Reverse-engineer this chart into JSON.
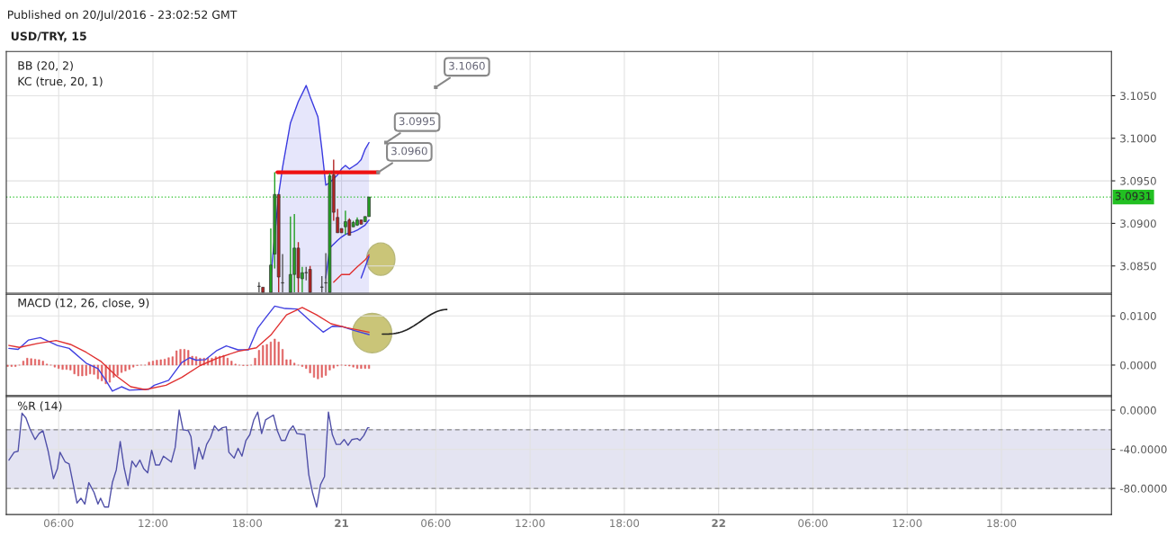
{
  "chart_data": [
    {
      "type": "candlestick",
      "title": "USD/TRY, 15",
      "subtitle": "Published on 20/Jul/2016 - 23:02:52 GMT",
      "annotations": [
        "BB (20, 2)",
        "KC (true, 20, 1)",
        {
          "text": "3.0960",
          "x": "2016-07-21T02:20",
          "y": 3.096
        },
        {
          "text": "3.0995",
          "x": "2016-07-21T02:50",
          "y": 3.0995
        },
        {
          "text": "3.1060",
          "x": "2016-07-21T06:00",
          "y": 3.106
        }
      ],
      "x": [
        "2016-07-20T18:45",
        "2016-07-20T19:00",
        "2016-07-20T19:30",
        "2016-07-20T19:45",
        "2016-07-20T20:00",
        "2016-07-20T20:15",
        "2016-07-20T20:45",
        "2016-07-20T21:00",
        "2016-07-20T21:15",
        "2016-07-20T21:30",
        "2016-07-20T21:45",
        "2016-07-20T22:00",
        "2016-07-20T22:45",
        "2016-07-20T23:00",
        "2016-07-20T23:15",
        "2016-07-20T23:30",
        "2016-07-20T23:45",
        "2016-07-21T00:00",
        "2016-07-21T00:15",
        "2016-07-21T00:30",
        "2016-07-21T00:45",
        "2016-07-21T01:00",
        "2016-07-21T01:15",
        "2016-07-21T01:30",
        "2016-07-21T01:45"
      ],
      "ohlc": [
        [
          3.0826,
          3.0831,
          3.0819,
          3.0826
        ],
        [
          3.0825,
          3.0825,
          3.0819,
          3.0819
        ],
        [
          3.0819,
          3.0894,
          3.0819,
          3.0851
        ],
        [
          3.0864,
          3.096,
          3.0847,
          3.0934
        ],
        [
          3.0934,
          3.0934,
          3.0819,
          3.0837
        ],
        [
          3.083,
          3.0864,
          3.0819,
          3.083
        ],
        [
          3.0819,
          3.0908,
          3.0819,
          3.084
        ],
        [
          3.084,
          3.0911,
          3.0819,
          3.0871
        ],
        [
          3.0871,
          3.0878,
          3.0819,
          3.0836
        ],
        [
          3.0835,
          3.0849,
          3.0819,
          3.0842
        ],
        [
          3.0842,
          3.0849,
          3.0833,
          3.0842
        ],
        [
          3.0846,
          3.085,
          3.0819,
          3.0819
        ],
        [
          3.0825,
          3.0838,
          3.0819,
          3.0825
        ],
        [
          3.083,
          3.0865,
          3.0819,
          3.083
        ],
        [
          3.0819,
          3.0959,
          3.0819,
          3.0956
        ],
        [
          3.0957,
          3.0975,
          3.0903,
          3.0913
        ],
        [
          3.0907,
          3.0917,
          3.0889,
          3.0889
        ],
        [
          3.0894,
          3.0894,
          3.0889,
          3.0889
        ],
        [
          3.0896,
          3.0915,
          3.0887,
          3.0902
        ],
        [
          3.0904,
          3.0906,
          3.0886,
          3.0886
        ],
        [
          3.0896,
          3.0903,
          3.0896,
          3.0901
        ],
        [
          3.0898,
          3.0907,
          3.0897,
          3.0904
        ],
        [
          3.0904,
          3.0904,
          3.0899,
          3.0899
        ],
        [
          3.0902,
          3.0908,
          3.0902,
          3.0908
        ],
        [
          3.0908,
          3.0931,
          3.0908,
          3.0931
        ]
      ],
      "colors": [
        "#555555",
        "#b22222",
        "#22a022",
        "#22a022",
        "#b22222",
        "#555555",
        "#22a022",
        "#22a022",
        "#b22222",
        "#22a022",
        "#555555",
        "#b22222",
        "#555555",
        "#555555",
        "#22a022",
        "#b22222",
        "#b22222",
        "#b22222",
        "#22a022",
        "#b22222",
        "#22a022",
        "#22a022",
        "#b22222",
        "#22a022",
        "#22a022"
      ],
      "series": [
        {
          "type": "area",
          "color": "#3a3ae0",
          "x": [
            "2016-07-20T19:30",
            "2016-07-20T20:00",
            "2016-07-20T20:15",
            "2016-07-20T20:45",
            "2016-07-20T21:15",
            "2016-07-20T21:45",
            "2016-07-20T22:00",
            "2016-07-20T22:30",
            "2016-07-20T22:45",
            "2016-07-20T23:00",
            "2016-07-20T23:15",
            "2016-07-20T23:45",
            "2016-07-21T00:00",
            "2016-07-21T00:15",
            "2016-07-21T00:30",
            "2016-07-21T00:45",
            "2016-07-21T01:00",
            "2016-07-21T01:15",
            "2016-07-21T01:30",
            "2016-07-21T01:45"
          ],
          "values": [
            3.0837,
            3.0934,
            3.0966,
            3.1018,
            3.1043,
            3.1062,
            3.1049,
            3.1025,
            3.0987,
            3.0945,
            3.0948,
            3.0957,
            3.0964,
            3.0968,
            3.0964,
            3.0967,
            3.097,
            3.0975,
            3.0987,
            3.0995
          ]
        },
        {
          "type": "line",
          "color": "#3a3ae0",
          "x": [
            "2016-07-20T23:00",
            "2016-07-20T23:15",
            "2016-07-20T23:45",
            "2016-07-21T00:00",
            "2016-07-21T00:15",
            "2016-07-21T00:30",
            "2016-07-21T00:45",
            "2016-07-21T01:00",
            "2016-07-21T01:15",
            "2016-07-21T01:30",
            "2016-07-21T01:45"
          ],
          "values": [
            3.0836,
            3.0871,
            3.088,
            3.0884,
            3.0887,
            3.0889,
            3.089,
            3.0892,
            3.0895,
            3.0898,
            3.0904
          ]
        },
        {
          "type": "line",
          "color": "#e03030",
          "x": [
            "2016-07-20T23:30",
            "2016-07-21T00:00",
            "2016-07-21T00:30",
            "2016-07-21T01:00",
            "2016-07-21T01:30",
            "2016-07-21T01:45"
          ],
          "values": [
            3.0831,
            3.084,
            3.084,
            3.0849,
            3.0857,
            3.0863
          ]
        },
        {
          "type": "line",
          "color": "#3a3ae0",
          "x": [
            "2016-07-21T01:15",
            "2016-07-21T01:45"
          ],
          "values": [
            3.0836,
            3.0861
          ]
        },
        {
          "type": "line",
          "color": "#ee1111",
          "x": [
            "2016-07-20T19:55",
            "2016-07-21T02:20"
          ],
          "values": [
            3.096,
            3.096
          ]
        }
      ],
      "ref_lines": [
        {
          "axis": "y",
          "value": 3.0931,
          "label": "3.0931",
          "color": "#22c022",
          "line_style": "dotted"
        }
      ],
      "xlim": [
        "2016-07-20T02:40",
        "2016-07-23T01:00"
      ],
      "xticks": [
        {
          "value": "2016-07-20T06:00",
          "label": null
        },
        {
          "value": "2016-07-20T12:00",
          "label": null
        },
        {
          "value": "2016-07-20T18:00",
          "label": null
        },
        {
          "value": "2016-07-21T00:00",
          "label": null
        },
        {
          "value": "2016-07-21T06:00",
          "label": null
        },
        {
          "value": "2016-07-21T12:00",
          "label": null
        },
        {
          "value": "2016-07-21T18:00",
          "label": null
        },
        {
          "value": "2016-07-22T00:00",
          "label": null
        },
        {
          "value": "2016-07-22T06:00",
          "label": null
        },
        {
          "value": "2016-07-22T12:00",
          "label": null
        },
        {
          "value": "2016-07-22T18:00",
          "label": null
        }
      ],
      "ylim": [
        3.0818,
        3.1102
      ],
      "yticks": [
        {
          "value": 3.085,
          "label": "3.0850"
        },
        {
          "value": 3.09,
          "label": "3.0900"
        },
        {
          "value": 3.095,
          "label": "3.0950"
        },
        {
          "value": 3.1,
          "label": "3.1000"
        },
        {
          "value": 3.105,
          "label": "3.1050"
        }
      ],
      "tick_labels": "y",
      "grid": true
    },
    {
      "type": "line",
      "title": "MACD (12, 26, close, 9)",
      "series": [
        {
          "type": "bar",
          "color": "#e06060",
          "x": [
            "2016-07-20T02:45",
            "2016-07-20T03:00",
            "2016-07-20T03:15",
            "2016-07-20T03:30",
            "2016-07-20T03:45",
            "2016-07-20T04:00",
            "2016-07-20T04:15",
            "2016-07-20T04:30",
            "2016-07-20T04:45",
            "2016-07-20T05:00",
            "2016-07-20T05:15",
            "2016-07-20T05:30",
            "2016-07-20T05:45",
            "2016-07-20T06:00",
            "2016-07-20T06:15",
            "2016-07-20T06:30",
            "2016-07-20T06:45",
            "2016-07-20T07:00",
            "2016-07-20T07:15",
            "2016-07-20T07:30",
            "2016-07-20T07:45",
            "2016-07-20T08:00",
            "2016-07-20T08:15",
            "2016-07-20T08:30",
            "2016-07-20T08:45",
            "2016-07-20T09:00",
            "2016-07-20T09:15",
            "2016-07-20T09:30",
            "2016-07-20T09:45",
            "2016-07-20T10:00",
            "2016-07-20T10:15",
            "2016-07-20T10:30",
            "2016-07-20T10:45",
            "2016-07-20T11:00",
            "2016-07-20T11:15",
            "2016-07-20T11:30",
            "2016-07-20T11:45",
            "2016-07-20T12:00",
            "2016-07-20T12:15",
            "2016-07-20T12:30",
            "2016-07-20T12:45",
            "2016-07-20T13:00",
            "2016-07-20T13:15",
            "2016-07-20T13:30",
            "2016-07-20T13:45",
            "2016-07-20T14:00",
            "2016-07-20T14:15",
            "2016-07-20T14:30",
            "2016-07-20T14:45",
            "2016-07-20T15:00",
            "2016-07-20T15:15",
            "2016-07-20T15:30",
            "2016-07-20T15:45",
            "2016-07-20T16:00",
            "2016-07-20T16:15",
            "2016-07-20T16:30",
            "2016-07-20T16:45",
            "2016-07-20T17:00",
            "2016-07-20T17:15",
            "2016-07-20T17:30",
            "2016-07-20T17:45",
            "2016-07-20T18:00",
            "2016-07-20T18:15",
            "2016-07-20T18:30",
            "2016-07-20T18:45",
            "2016-07-20T19:00",
            "2016-07-20T19:15",
            "2016-07-20T19:30",
            "2016-07-20T19:45",
            "2016-07-20T20:00",
            "2016-07-20T20:15",
            "2016-07-20T20:30",
            "2016-07-20T20:45",
            "2016-07-20T21:00",
            "2016-07-20T21:15",
            "2016-07-20T21:30",
            "2016-07-20T21:45",
            "2016-07-20T22:00",
            "2016-07-20T22:15",
            "2016-07-20T22:30",
            "2016-07-20T22:45",
            "2016-07-20T23:00",
            "2016-07-20T23:15",
            "2016-07-20T23:30",
            "2016-07-20T23:45",
            "2016-07-21T00:00",
            "2016-07-21T00:15",
            "2016-07-21T00:30",
            "2016-07-21T00:45",
            "2016-07-21T01:00",
            "2016-07-21T01:15",
            "2016-07-21T01:30",
            "2016-07-21T01:45"
          ],
          "values": [
            -0.0003,
            -0.0003,
            -0.0003,
            0,
            0.0008,
            0.0014,
            0.0013,
            0.0012,
            0.0011,
            0.0008,
            0.0002,
            0,
            -0.0004,
            -0.0007,
            -0.0009,
            -0.0009,
            -0.001,
            -0.0018,
            -0.0022,
            -0.0022,
            -0.0021,
            -0.0018,
            -0.0019,
            -0.0028,
            -0.0032,
            -0.0038,
            -0.0035,
            -0.0025,
            -0.0021,
            -0.0015,
            -0.0012,
            -0.0009,
            -0.0004,
            -0.0001,
            0,
            0,
            0.0006,
            0.0008,
            0.001,
            0.0011,
            0.0012,
            0.0015,
            0.0017,
            0.0029,
            0.0032,
            0.0032,
            0.003,
            0.0018,
            0.0017,
            0.0014,
            0.0014,
            0.0014,
            0.0014,
            0.0017,
            0.0018,
            0.002,
            0.0014,
            0.0008,
            0.0002,
            0,
            -0.0001,
            -0.0001,
            0,
            0.0014,
            0.003,
            0.004,
            0.0042,
            0.0047,
            0.0053,
            0.0047,
            0.0032,
            0.0011,
            0.0011,
            0.0004,
            0,
            -0.0003,
            -0.0007,
            -0.0016,
            -0.0025,
            -0.0028,
            -0.0025,
            -0.0021,
            -0.001,
            -0.0006,
            -0.0002,
            0,
            -0.0001,
            -0.0002,
            -0.0004,
            -0.0007,
            -0.0007,
            -0.0007,
            -0.0007
          ]
        },
        {
          "type": "line",
          "color": "#4040e0",
          "x": [
            "2016-07-20T02:50",
            "2016-07-20T03:25",
            "2016-07-20T04:05",
            "2016-07-20T04:50",
            "2016-07-20T05:55",
            "2016-07-20T06:40",
            "2016-07-20T07:45",
            "2016-07-20T08:30",
            "2016-07-20T09:00",
            "2016-07-20T09:25",
            "2016-07-20T10:00",
            "2016-07-20T10:30",
            "2016-07-20T11:45",
            "2016-07-20T12:05",
            "2016-07-20T13:00",
            "2016-07-20T13:50",
            "2016-07-20T14:20",
            "2016-07-20T14:45",
            "2016-07-20T15:20",
            "2016-07-20T16:05",
            "2016-07-20T16:40",
            "2016-07-20T17:25",
            "2016-07-20T18:05",
            "2016-07-20T18:40",
            "2016-07-20T19:10",
            "2016-07-20T19:45",
            "2016-07-20T20:25",
            "2016-07-20T21:10",
            "2016-07-20T22:00",
            "2016-07-20T22:50",
            "2016-07-20T23:25",
            "2016-07-21T00:05",
            "2016-07-21T00:50",
            "2016-07-21T01:45"
          ],
          "values": [
            0.0034,
            0.0032,
            0.0051,
            0.0056,
            0.004,
            0.0034,
            0.0004,
            -0.0007,
            -0.0031,
            -0.0053,
            -0.0044,
            -0.0051,
            -0.0049,
            -0.0041,
            -0.0031,
            0.0005,
            0.0015,
            0.001,
            0.0011,
            0.003,
            0.0039,
            0.0031,
            0.0031,
            0.0075,
            0.0096,
            0.012,
            0.0115,
            0.0114,
            0.009,
            0.0067,
            0.0079,
            0.0078,
            0.007,
            0.0062
          ]
        },
        {
          "type": "line",
          "color": "#e03030",
          "x": [
            "2016-07-20T02:50",
            "2016-07-20T03:30",
            "2016-07-20T04:40",
            "2016-07-20T05:50",
            "2016-07-20T06:45",
            "2016-07-20T07:45",
            "2016-07-20T08:40",
            "2016-07-20T09:40",
            "2016-07-20T10:35",
            "2016-07-20T11:30",
            "2016-07-20T12:50",
            "2016-07-20T13:50",
            "2016-07-20T15:00",
            "2016-07-20T16:05",
            "2016-07-20T17:25",
            "2016-07-20T18:35",
            "2016-07-20T19:30",
            "2016-07-20T20:30",
            "2016-07-20T21:30",
            "2016-07-20T22:25",
            "2016-07-20T23:20",
            "2016-07-21T00:20",
            "2016-07-21T01:45"
          ],
          "values": [
            0.004,
            0.0036,
            0.0044,
            0.005,
            0.0042,
            0.0026,
            0.0008,
            -0.0022,
            -0.0044,
            -0.005,
            -0.0041,
            -0.0025,
            -0.0001,
            0.0014,
            0.0028,
            0.0035,
            0.0061,
            0.0102,
            0.0117,
            0.0102,
            0.0084,
            0.0076,
            0.0067
          ]
        }
      ],
      "xlim": [
        "2016-07-20T02:40",
        "2016-07-23T01:00"
      ],
      "xticks": [
        {
          "value": "2016-07-20T06:00",
          "label": null
        },
        {
          "value": "2016-07-20T12:00",
          "label": null
        },
        {
          "value": "2016-07-20T18:00",
          "label": null
        },
        {
          "value": "2016-07-21T00:00",
          "label": null
        },
        {
          "value": "2016-07-21T06:00",
          "label": null
        },
        {
          "value": "2016-07-21T12:00",
          "label": null
        },
        {
          "value": "2016-07-21T18:00",
          "label": null
        },
        {
          "value": "2016-07-22T00:00",
          "label": null
        },
        {
          "value": "2016-07-22T06:00",
          "label": null
        },
        {
          "value": "2016-07-22T12:00",
          "label": null
        },
        {
          "value": "2016-07-22T18:00",
          "label": null
        }
      ],
      "ylim": [
        -0.0062,
        0.0144
      ],
      "yticks": [
        {
          "value": 0,
          "label": "0.0000"
        },
        {
          "value": 0.01,
          "label": "0.0100"
        }
      ],
      "tick_labels": "y",
      "grid": true
    },
    {
      "type": "line",
      "title": "%R (14)",
      "series": [
        {
          "type": "line",
          "color": "#5050a8",
          "x": [
            "2016-07-20T02:50",
            "2016-07-20T03:10",
            "2016-07-20T03:25",
            "2016-07-20T03:40",
            "2016-07-20T03:55",
            "2016-07-20T04:10",
            "2016-07-20T04:30",
            "2016-07-20T04:45",
            "2016-07-20T05:00",
            "2016-07-20T05:20",
            "2016-07-20T05:40",
            "2016-07-20T05:55",
            "2016-07-20T06:05",
            "2016-07-20T06:25",
            "2016-07-20T06:40",
            "2016-07-20T07:10",
            "2016-07-20T07:25",
            "2016-07-20T07:40",
            "2016-07-20T07:55",
            "2016-07-20T08:15",
            "2016-07-20T08:30",
            "2016-07-20T08:40",
            "2016-07-20T08:55",
            "2016-07-20T09:10",
            "2016-07-20T09:25",
            "2016-07-20T09:40",
            "2016-07-20T09:55",
            "2016-07-20T10:10",
            "2016-07-20T10:25",
            "2016-07-20T10:40",
            "2016-07-20T10:55",
            "2016-07-20T11:10",
            "2016-07-20T11:25",
            "2016-07-20T11:40",
            "2016-07-20T11:55",
            "2016-07-20T12:10",
            "2016-07-20T12:25",
            "2016-07-20T12:40",
            "2016-07-20T13:10",
            "2016-07-20T13:25",
            "2016-07-20T13:40",
            "2016-07-20T13:55",
            "2016-07-20T14:15",
            "2016-07-20T14:25",
            "2016-07-20T14:40",
            "2016-07-20T14:55",
            "2016-07-20T15:10",
            "2016-07-20T15:25",
            "2016-07-20T15:40",
            "2016-07-20T15:55",
            "2016-07-20T16:10",
            "2016-07-20T16:25",
            "2016-07-20T16:40",
            "2016-07-20T16:50",
            "2016-07-20T17:10",
            "2016-07-20T17:25",
            "2016-07-20T17:40",
            "2016-07-20T17:55",
            "2016-07-20T18:10",
            "2016-07-20T18:25",
            "2016-07-20T18:40",
            "2016-07-20T18:55",
            "2016-07-20T19:10",
            "2016-07-20T19:40",
            "2016-07-20T19:55",
            "2016-07-20T20:10",
            "2016-07-20T20:25",
            "2016-07-20T20:40",
            "2016-07-20T20:55",
            "2016-07-20T21:10",
            "2016-07-20T21:40",
            "2016-07-20T21:55",
            "2016-07-20T22:10",
            "2016-07-20T22:25",
            "2016-07-20T22:40",
            "2016-07-20T22:55",
            "2016-07-20T23:10",
            "2016-07-20T23:25",
            "2016-07-20T23:40",
            "2016-07-20T23:55",
            "2016-07-21T00:10",
            "2016-07-21T00:25",
            "2016-07-21T00:40",
            "2016-07-21T01:00",
            "2016-07-21T01:10",
            "2016-07-21T01:25",
            "2016-07-21T01:40",
            "2016-07-21T01:45"
          ],
          "values": [
            -51,
            -43,
            -42,
            -3,
            -8,
            -19,
            -30,
            -24,
            -21,
            -42,
            -70,
            -60,
            -43,
            -53,
            -55,
            -95,
            -90,
            -96,
            -74,
            -84,
            -96,
            -90,
            -99,
            -99,
            -74,
            -61,
            -32,
            -59,
            -77,
            -52,
            -58,
            -51,
            -60,
            -64,
            -41,
            -56,
            -56,
            -47,
            -53,
            -38,
            0,
            -20,
            -21,
            -27,
            -60,
            -38,
            -50,
            -35,
            -28,
            -16,
            -21,
            -18,
            -17,
            -43,
            -49,
            -39,
            -47,
            -31,
            -25,
            -10,
            -2,
            -24,
            -10,
            -5,
            -21,
            -31,
            -31,
            -21,
            -16,
            -24,
            -25,
            -66,
            -85,
            -99,
            -76,
            -68,
            -2,
            -25,
            -35,
            -35,
            -30,
            -36,
            -30,
            -29,
            -31,
            -26,
            -18,
            -18
          ]
        }
      ],
      "bands": [
        {
          "axis": "y",
          "from": -80,
          "to": -20,
          "color": "#e4e4f2"
        }
      ],
      "ref_lines": [
        {
          "axis": "y",
          "value": -20,
          "color": "#888888",
          "line_style": "dashed"
        },
        {
          "axis": "y",
          "value": -80,
          "color": "#888888",
          "line_style": "dashed"
        }
      ],
      "xlim": [
        "2016-07-20T02:40",
        "2016-07-23T01:00"
      ],
      "xticks": [
        {
          "value": "2016-07-20T06:00",
          "label": "06:00"
        },
        {
          "value": "2016-07-20T12:00",
          "label": "12:00"
        },
        {
          "value": "2016-07-20T18:00",
          "label": "18:00"
        },
        {
          "value": "2016-07-21T00:00",
          "label": "21"
        },
        {
          "value": "2016-07-21T06:00",
          "label": "06:00"
        },
        {
          "value": "2016-07-21T12:00",
          "label": "12:00"
        },
        {
          "value": "2016-07-21T18:00",
          "label": "18:00"
        },
        {
          "value": "2016-07-22T00:00",
          "label": "22"
        },
        {
          "value": "2016-07-22T06:00",
          "label": "06:00"
        },
        {
          "value": "2016-07-22T12:00",
          "label": "12:00"
        },
        {
          "value": "2016-07-22T18:00",
          "label": "18:00"
        }
      ],
      "ylim": [
        -106.7,
        13.8
      ],
      "yticks": [
        {
          "value": 0,
          "label": "0.0000"
        },
        {
          "value": -40,
          "label": "-40.0000"
        },
        {
          "value": -80,
          "label": "-80.0000"
        }
      ],
      "grid": true
    }
  ]
}
